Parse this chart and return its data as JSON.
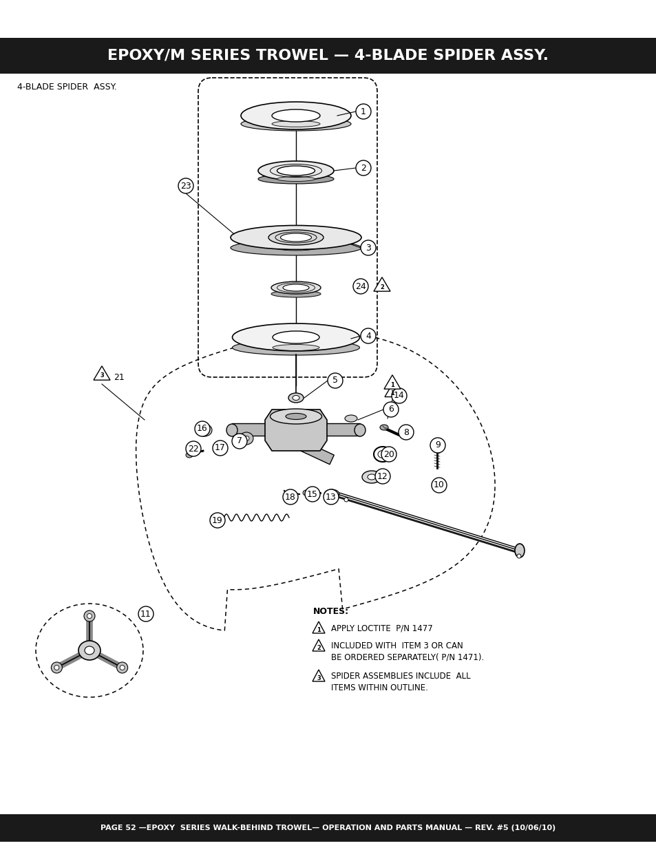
{
  "title": "EPOXY/M SERIES TROWEL — 4-BLADE SPIDER ASSY.",
  "subtitle": "4-BLADE SPIDER  ASSY.",
  "footer": "PAGE 52 —EPOXY  SERIES WALK-BEHIND TROWEL— OPERATION AND PARTS MANUAL — REV. #5 (10/06/10)",
  "title_bg": "#1a1a1a",
  "footer_bg": "#1a1a1a",
  "title_color": "#ffffff",
  "footer_color": "#ffffff",
  "bg_color": "#ffffff",
  "notes": [
    {
      "symbol": "1",
      "text": "APPLY LOCTITE  P/N 1477"
    },
    {
      "symbol": "2",
      "text": "INCLUDED WITH  ITEM 3 OR CAN\nBE ORDERED SEPARATELY( P/N 1471)."
    },
    {
      "symbol": "3",
      "text": "SPIDER ASSEMBLIES INCLUDE  ALL\nITEMS WITHIN OUTLINE."
    }
  ],
  "notes_label": "NOTES:"
}
